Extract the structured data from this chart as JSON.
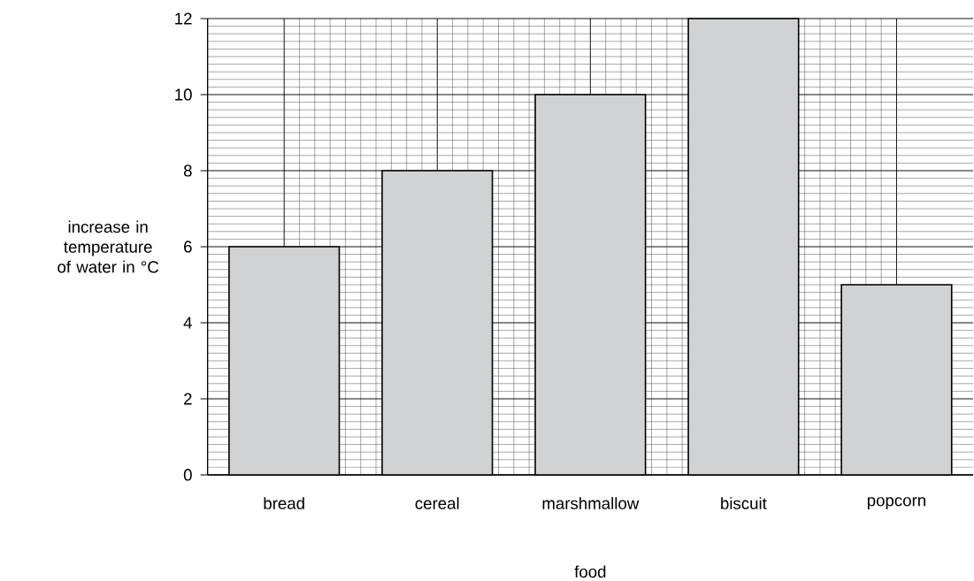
{
  "chart_data": {
    "type": "bar",
    "xlabel": "food",
    "ylabel": "increase in temperature of water in °C",
    "categories": [
      "bread",
      "cereal",
      "marshmallow",
      "biscuit",
      "popcorn"
    ],
    "values": [
      6,
      8,
      10,
      12,
      5
    ],
    "color": "#d1d2d4",
    "ylim": [
      0,
      12
    ],
    "yticks": [
      0,
      2,
      4,
      6,
      8,
      10,
      12
    ],
    "grid": true
  }
}
